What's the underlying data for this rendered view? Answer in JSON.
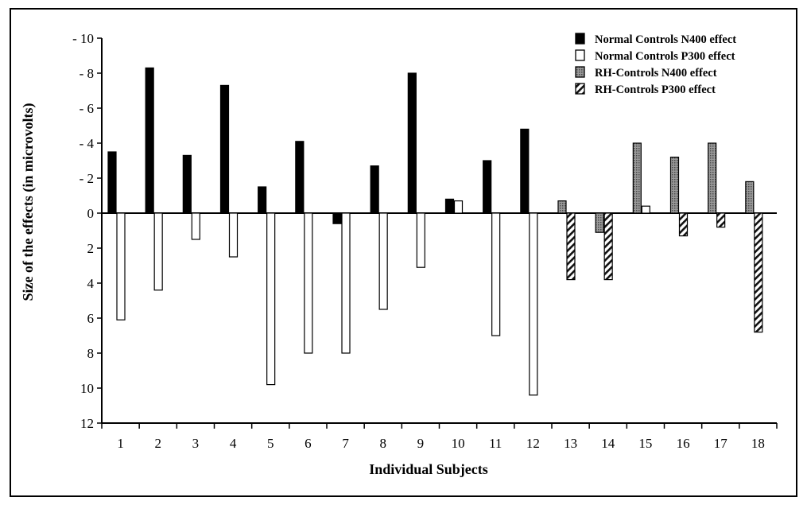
{
  "chart_data": {
    "type": "bar",
    "xlabel": "Individual Subjects",
    "ylabel": "Size of the effects (in microvolts)",
    "ylim": [
      -10,
      12
    ],
    "y_ticks": [
      {
        "value": -10,
        "label": "- 10"
      },
      {
        "value": -8,
        "label": "- 8"
      },
      {
        "value": -6,
        "label": "- 6"
      },
      {
        "value": -4,
        "label": "- 4"
      },
      {
        "value": -2,
        "label": "- 2"
      },
      {
        "value": 0,
        "label": "0"
      },
      {
        "value": 2,
        "label": "2"
      },
      {
        "value": 4,
        "label": "4"
      },
      {
        "value": 6,
        "label": "6"
      },
      {
        "value": 8,
        "label": "8"
      },
      {
        "value": 10,
        "label": "10"
      },
      {
        "value": 12,
        "label": "12"
      }
    ],
    "categories": [
      "1",
      "2",
      "3",
      "4",
      "5",
      "6",
      "7",
      "8",
      "9",
      "10",
      "11",
      "12",
      "13",
      "14",
      "15",
      "16",
      "17",
      "18"
    ],
    "legend_position": "top-right",
    "grid": false,
    "series": [
      {
        "name": "Normal Controls N400 effect",
        "style": "solid",
        "color": "#000000",
        "values": [
          -3.5,
          -8.3,
          -3.3,
          -7.3,
          -1.5,
          -4.1,
          0.6,
          -2.7,
          -8.0,
          -0.8,
          -3.0,
          -4.8,
          null,
          null,
          null,
          null,
          null,
          null
        ]
      },
      {
        "name": "Normal Controls P300 effect",
        "style": "white",
        "color": "#ffffff",
        "values": [
          6.1,
          4.4,
          1.5,
          2.5,
          9.8,
          8.0,
          8.0,
          5.5,
          3.1,
          -0.7,
          7.0,
          10.4,
          null,
          null,
          -0.4,
          null,
          null,
          null
        ]
      },
      {
        "name": "RH-Controls N400 effect",
        "style": "dotted",
        "color": "#8a8a8a",
        "values": [
          null,
          null,
          null,
          null,
          null,
          null,
          null,
          null,
          null,
          null,
          null,
          null,
          -0.7,
          1.1,
          -4.0,
          -3.2,
          -4.0,
          -1.8
        ]
      },
      {
        "name": "RH-Controls P300 effect",
        "style": "hatched",
        "color": "#555555",
        "values": [
          null,
          null,
          null,
          null,
          null,
          null,
          null,
          null,
          null,
          null,
          null,
          null,
          3.8,
          3.8,
          null,
          1.3,
          0.8,
          6.8
        ]
      }
    ]
  }
}
